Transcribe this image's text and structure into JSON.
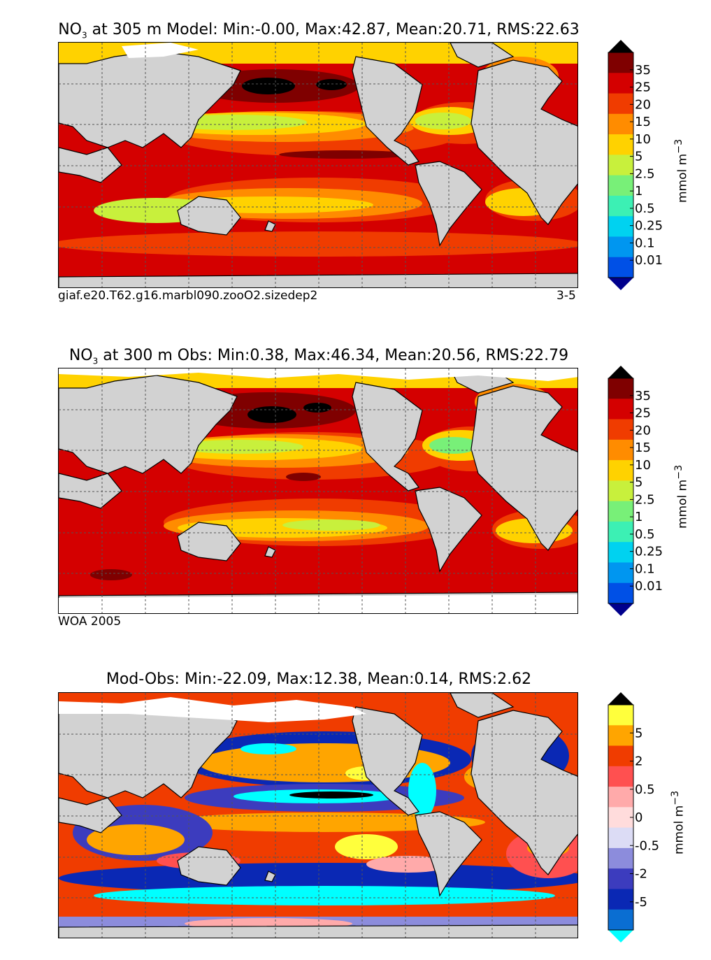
{
  "panels": [
    {
      "id": "model",
      "title_prefix": "NO",
      "title_sub": "3",
      "title_rest": " at 305 m Model: Min:-0.00, Max:42.87, Mean:20.71, RMS:22.63",
      "caption_left": "giaf.e20.T62.g16.marbl090.zooO2.sizedep2",
      "caption_right": "3-5",
      "colorbar": {
        "unit": "mmol m",
        "unit_sup": "−3",
        "ticks": [
          "35",
          "25",
          "20",
          "15",
          "10",
          "5",
          "2.5",
          "1",
          "0.5",
          "0.25",
          "0.1",
          "0.01"
        ],
        "colors": [
          "#7f0000",
          "#d40000",
          "#f03c00",
          "#ff8c00",
          "#ffd200",
          "#c8f03c",
          "#78f078",
          "#3cf0b4",
          "#00d2f0",
          "#0096f0",
          "#0050e6",
          "#0000c8",
          "#00008c"
        ]
      }
    },
    {
      "id": "obs",
      "title_prefix": "NO",
      "title_sub": "3",
      "title_rest": " at 300 m Obs: Min:0.38, Max:46.34, Mean:20.56, RMS:22.79",
      "caption_left": "WOA 2005",
      "caption_right": "",
      "colorbar": {
        "unit": "mmol m",
        "unit_sup": "−3",
        "ticks": [
          "35",
          "25",
          "20",
          "15",
          "10",
          "5",
          "2.5",
          "1",
          "0.5",
          "0.25",
          "0.1",
          "0.01"
        ],
        "colors": [
          "#7f0000",
          "#d40000",
          "#f03c00",
          "#ff8c00",
          "#ffd200",
          "#c8f03c",
          "#78f078",
          "#3cf0b4",
          "#00d2f0",
          "#0096f0",
          "#0050e6",
          "#0000c8",
          "#00008c"
        ]
      }
    },
    {
      "id": "diff",
      "title_prefix": "",
      "title_sub": "",
      "title_rest": "Mod-Obs: Min:-22.09, Max:12.38, Mean:0.14, RMS:2.62",
      "caption_left": "",
      "caption_right": "",
      "colorbar": {
        "unit": "mmol m",
        "unit_sup": "−3",
        "ticks": [
          "5",
          "2",
          "0.5",
          "0",
          "-0.5",
          "-2",
          "-5"
        ],
        "colors": [
          "#ffff3c",
          "#ffa500",
          "#f03c00",
          "#ff5050",
          "#ffaaaa",
          "#ffdcdc",
          "#dcdcf5",
          "#8c8cdc",
          "#3c3cbe",
          "#0a28b4",
          "#0a6ed2",
          "#00b4e6",
          "#00ffff"
        ]
      }
    }
  ],
  "colors": {
    "land": "#d2d2d2",
    "missing": "#ffffff",
    "grid": "#555555"
  }
}
